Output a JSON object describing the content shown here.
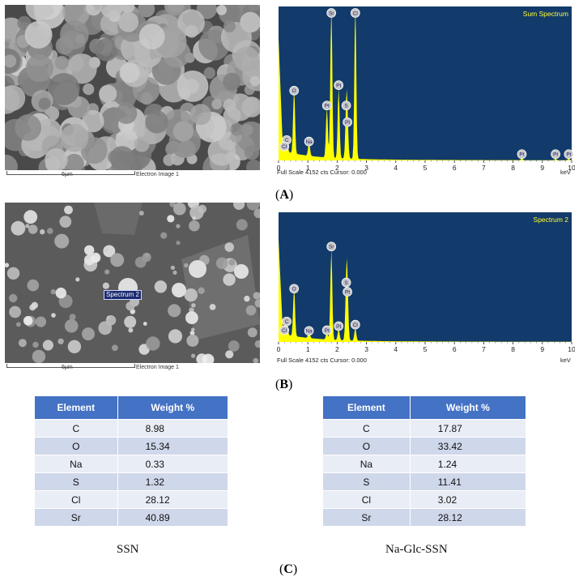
{
  "panels": {
    "a": {
      "label": "A",
      "sem": {
        "scale": "6µm",
        "image_label": "Electron Image 1"
      },
      "eds": {
        "title": "Sum Spectrum",
        "footer": "Full Scale 4152 cts Cursor: 0.000",
        "unit": "keV"
      }
    },
    "b": {
      "label": "B",
      "sem": {
        "scale": "6µm",
        "image_label": "Electron Image 1",
        "tag": "Spectrum 2"
      },
      "eds": {
        "title": "Spectrum 2",
        "footer": "Full Scale 4152 cts Cursor: 0.000",
        "unit": "keV"
      }
    },
    "c": {
      "label": "C"
    }
  },
  "colors": {
    "spectrum_bg": "#123a6b",
    "spectrum_fill": "#ffff00",
    "table_header": "#4472c4"
  },
  "chart_data": [
    {
      "type": "area",
      "title": "Sum Spectrum",
      "xlabel": "keV",
      "xlim": [
        0,
        10
      ],
      "xticks": [
        0,
        1,
        2,
        3,
        4,
        5,
        6,
        7,
        8,
        9,
        10
      ],
      "ylim": [
        0,
        4152
      ],
      "footer": "Full Scale 4152 cts Cursor: 0.000",
      "peaks": [
        {
          "label": "C",
          "x": 0.28,
          "y": 420
        },
        {
          "label": "O",
          "x": 0.53,
          "y": 1750
        },
        {
          "label": "Cl",
          "x": 0.2,
          "y": 250
        },
        {
          "label": "Na",
          "x": 1.04,
          "y": 380
        },
        {
          "label": "Pt",
          "x": 1.65,
          "y": 1350
        },
        {
          "label": "Sr",
          "x": 1.8,
          "y": 4150
        },
        {
          "label": "Pt",
          "x": 2.05,
          "y": 1900
        },
        {
          "label": "S",
          "x": 2.31,
          "y": 1350
        },
        {
          "label": "Pt",
          "x": 2.35,
          "y": 900
        },
        {
          "label": "Cl",
          "x": 2.62,
          "y": 4150
        },
        {
          "label": "Pt",
          "x": 8.3,
          "y": 40
        },
        {
          "label": "Pt",
          "x": 9.45,
          "y": 40
        },
        {
          "label": "Pt",
          "x": 9.9,
          "y": 40
        }
      ]
    },
    {
      "type": "area",
      "title": "Spectrum 2",
      "xlabel": "keV",
      "xlim": [
        0,
        10
      ],
      "xticks": [
        0,
        1,
        2,
        3,
        4,
        5,
        6,
        7,
        8,
        9,
        10
      ],
      "ylim": [
        0,
        4152
      ],
      "footer": "Full Scale 4152 cts Cursor: 0.000",
      "peaks": [
        {
          "label": "Cl",
          "x": 0.2,
          "y": 220
        },
        {
          "label": "C",
          "x": 0.28,
          "y": 500
        },
        {
          "label": "O",
          "x": 0.53,
          "y": 1550
        },
        {
          "label": "Na",
          "x": 1.04,
          "y": 200
        },
        {
          "label": "Pt",
          "x": 1.65,
          "y": 220
        },
        {
          "label": "Sr",
          "x": 1.8,
          "y": 2900
        },
        {
          "label": "Pt",
          "x": 2.05,
          "y": 350
        },
        {
          "label": "S",
          "x": 2.31,
          "y": 1750
        },
        {
          "label": "Pt",
          "x": 2.35,
          "y": 1450
        },
        {
          "label": "Cl",
          "x": 2.62,
          "y": 400
        }
      ]
    },
    {
      "type": "table",
      "caption": "SSN",
      "columns": [
        "Element",
        "Weight %"
      ],
      "rows": [
        [
          "C",
          "8.98"
        ],
        [
          "O",
          "15.34"
        ],
        [
          "Na",
          "0.33"
        ],
        [
          "S",
          "1.32"
        ],
        [
          "Cl",
          "28.12"
        ],
        [
          "Sr",
          "40.89"
        ]
      ]
    },
    {
      "type": "table",
      "caption": "Na-Glc-SSN",
      "columns": [
        "Element",
        "Weight %"
      ],
      "rows": [
        [
          "C",
          "17.87"
        ],
        [
          "O",
          "33.42"
        ],
        [
          "Na",
          "1.24"
        ],
        [
          "S",
          "11.41"
        ],
        [
          "Cl",
          "3.02"
        ],
        [
          "Sr",
          "28.12"
        ]
      ]
    }
  ]
}
